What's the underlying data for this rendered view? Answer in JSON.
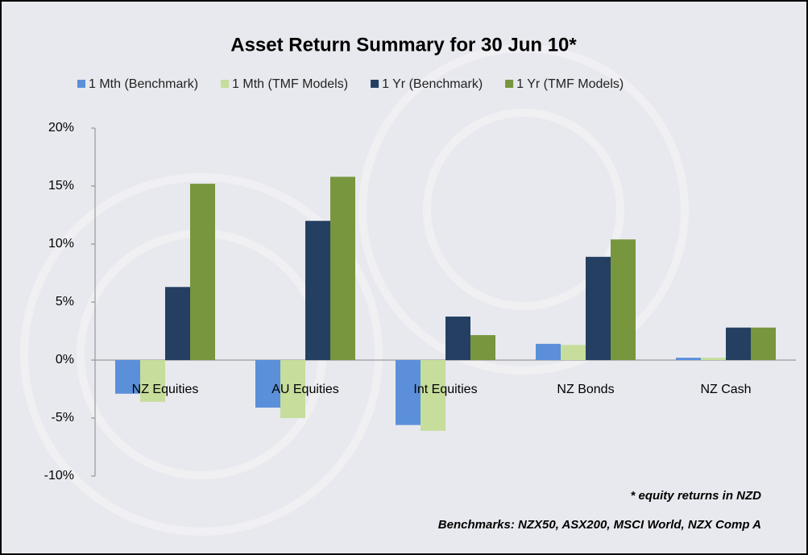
{
  "chart_data": {
    "type": "bar",
    "title": "Asset Return Summary for 30 Jun 10*",
    "categories": [
      "NZ Equities",
      "AU Equities",
      "Int Equities",
      "NZ Bonds",
      "NZ Cash"
    ],
    "series": [
      {
        "name": "1 Mth (Benchmark)",
        "color": "#5b8fd9",
        "values": [
          -2.9,
          -4.1,
          -5.6,
          1.4,
          0.2
        ]
      },
      {
        "name": "1 Mth (TMF Models)",
        "color": "#c6dd9c",
        "values": [
          -3.6,
          -5.0,
          -6.1,
          1.3,
          0.2
        ]
      },
      {
        "name": "1 Yr (Benchmark)",
        "color": "#243f62",
        "values": [
          6.3,
          12.0,
          3.75,
          8.9,
          2.8
        ]
      },
      {
        "name": "1 Yr (TMF Models)",
        "color": "#77963d",
        "values": [
          15.2,
          15.8,
          2.15,
          10.4,
          2.8
        ]
      }
    ],
    "ylim": [
      -10,
      20
    ],
    "yticks": [
      {
        "value": -10,
        "label": "-10%"
      },
      {
        "value": -5,
        "label": "-5%"
      },
      {
        "value": 0,
        "label": "0%"
      },
      {
        "value": 5,
        "label": "5%"
      },
      {
        "value": 10,
        "label": "10%"
      },
      {
        "value": 15,
        "label": "15%"
      },
      {
        "value": 20,
        "label": "20%"
      }
    ],
    "annotations": [
      "* equity returns in NZD",
      "Benchmarks: NZX50, ASX200, MSCI World, NZX Comp A"
    ],
    "legend": "top"
  }
}
